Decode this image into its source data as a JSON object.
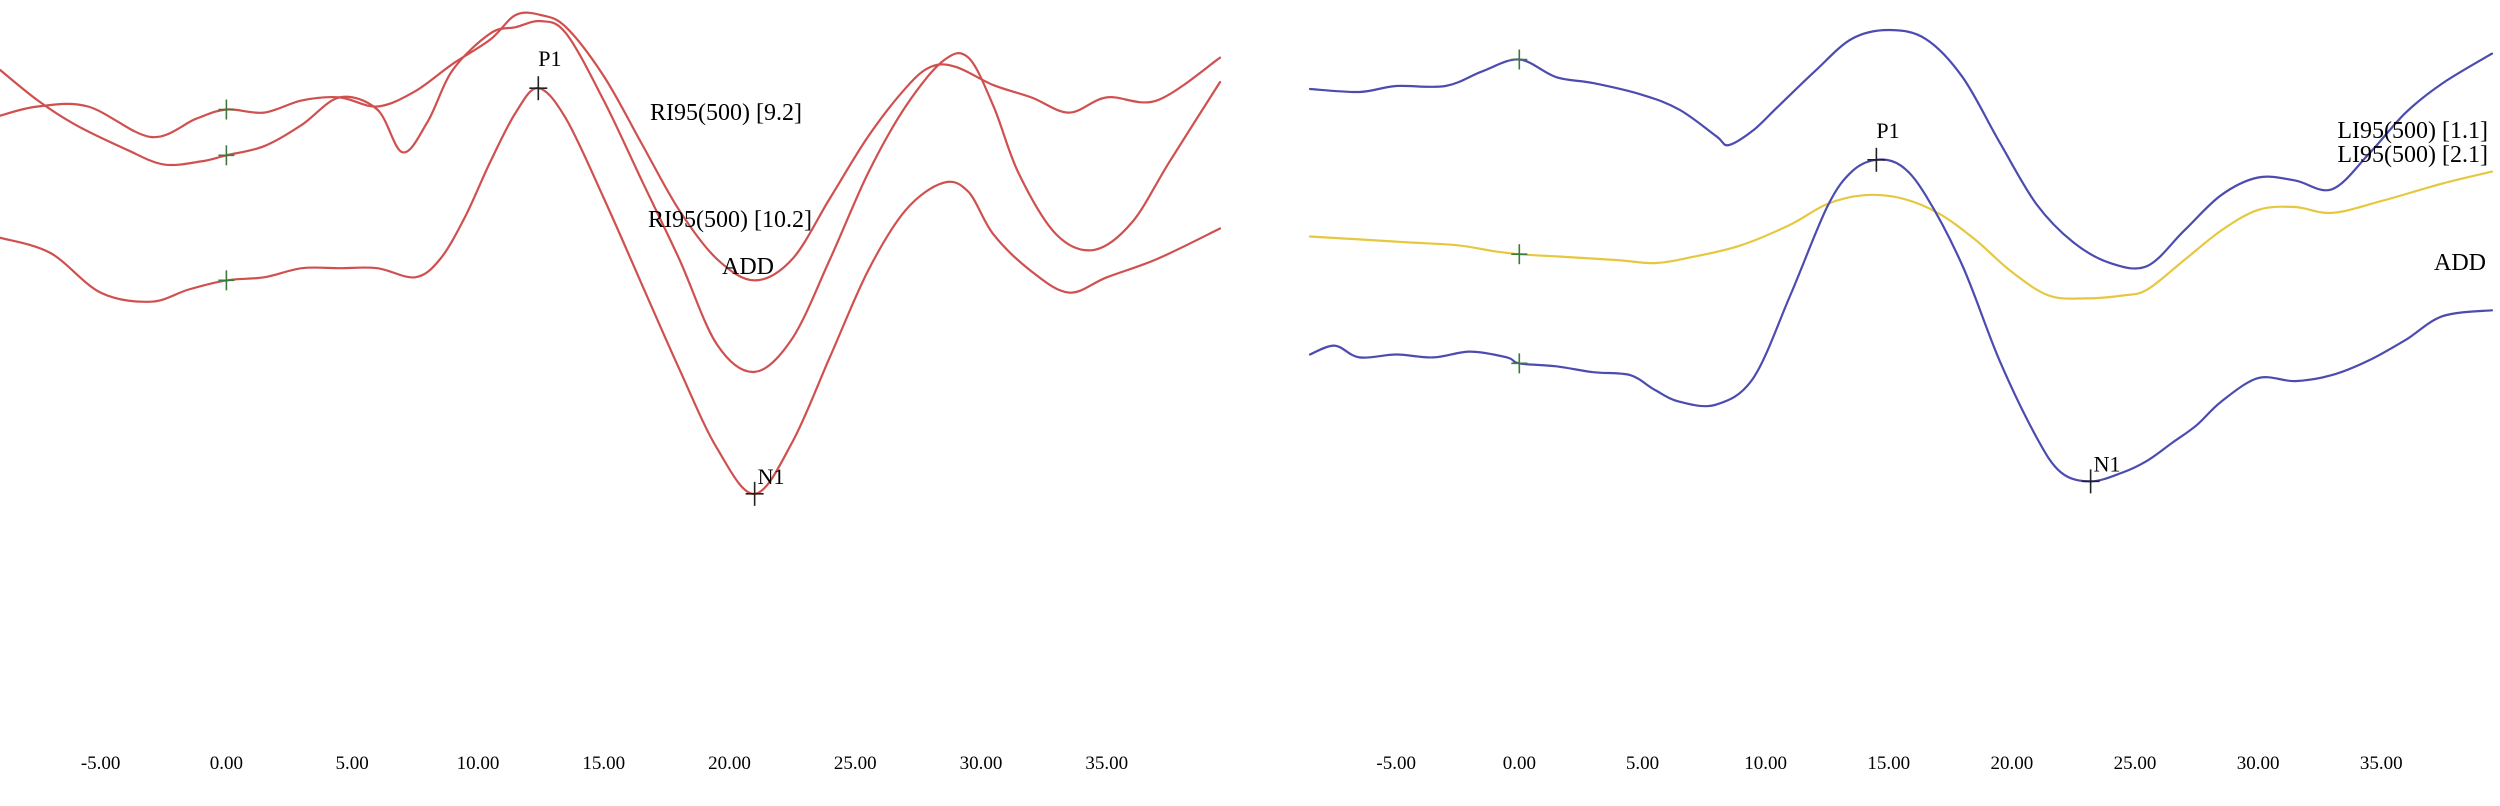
{
  "chart_data": [
    {
      "type": "line",
      "panel": "left",
      "xlim": [
        -9,
        39.5
      ],
      "x_ticks": [
        -5,
        0,
        5,
        10,
        15,
        20,
        25,
        30,
        35
      ],
      "x_tick_labels": [
        "-5.00",
        "0.00",
        "5.00",
        "10.00",
        "15.00",
        "20.00",
        "25.00",
        "30.00",
        "35.00"
      ],
      "series": [
        {
          "name": "RI95(500) [9.2]",
          "color": "#d05050",
          "x": [
            -9,
            -7.5,
            -5.5,
            -3,
            -1.2,
            0,
            1.5,
            3,
            4.5,
            6,
            7.5,
            9,
            10.5,
            11.5,
            12.5,
            13.5,
            15,
            16.5,
            18,
            19.5,
            21,
            22.5,
            24,
            25.5,
            27,
            28,
            29,
            30.5,
            32,
            33.5,
            35,
            37,
            39.5
          ],
          "y": [
            -0.45,
            -0.3,
            -0.3,
            -0.8,
            -0.5,
            -0.35,
            -0.4,
            -0.2,
            -0.15,
            -0.3,
            -0.05,
            0.4,
            0.8,
            1.2,
            1.2,
            1.0,
            0.2,
            -0.9,
            -2.0,
            -2.8,
            -3.15,
            -2.8,
            -1.8,
            -0.8,
            0.0,
            0.35,
            0.35,
            0.05,
            -0.15,
            -0.4,
            -0.15,
            -0.2,
            0.5
          ]
        },
        {
          "name": "RI95(500) [10.2]",
          "color": "#d05050",
          "x": [
            -9,
            -7.5,
            -6,
            -4,
            -2.5,
            -1,
            0,
            1.5,
            3,
            4.5,
            6,
            7,
            8,
            9,
            10.5,
            11.5,
            12.5,
            13.5,
            15,
            16.5,
            18,
            19.5,
            21,
            22.5,
            24,
            25.5,
            27,
            28.5,
            29.5,
            30.5,
            31.5,
            33,
            34.5,
            36,
            37.5,
            39.5
          ],
          "y": [
            0.3,
            -0.2,
            -0.6,
            -1.0,
            -1.25,
            -1.2,
            -1.1,
            -0.95,
            -0.6,
            -0.15,
            -0.35,
            -1.05,
            -0.55,
            0.3,
            0.9,
            1.0,
            1.1,
            0.9,
            -0.2,
            -1.5,
            -2.8,
            -4.2,
            -4.65,
            -4.1,
            -2.8,
            -1.4,
            -0.3,
            0.45,
            0.5,
            -0.3,
            -1.4,
            -2.4,
            -2.65,
            -2.2,
            -1.2,
            0.1
          ]
        },
        {
          "name": "ADD",
          "color": "#d05050",
          "x": [
            -9,
            -7,
            -5,
            -3,
            -1.5,
            0,
            1.5,
            3,
            4.5,
            6,
            7.5,
            8.5,
            9.5,
            10.5,
            11.5,
            12.4,
            13.5,
            15,
            16.5,
            18,
            19.5,
            21,
            22.5,
            24,
            25.5,
            27,
            28.5,
            29.5,
            30.5,
            32,
            33.5,
            35,
            37,
            39.5
          ],
          "y": [
            -2.45,
            -2.7,
            -3.35,
            -3.5,
            -3.3,
            -3.15,
            -3.1,
            -2.95,
            -2.95,
            -2.95,
            -3.1,
            -2.8,
            -2.1,
            -1.2,
            -0.4,
            0.0,
            -0.5,
            -1.8,
            -3.2,
            -4.6,
            -5.9,
            -6.65,
            -5.8,
            -4.4,
            -3.0,
            -2.0,
            -1.55,
            -1.7,
            -2.4,
            -3.0,
            -3.35,
            -3.1,
            -2.8,
            -2.3
          ]
        }
      ],
      "trace_labels": [
        "RI95(500) [9.2]",
        "RI95(500) [10.2]",
        "ADD"
      ],
      "peaks": [
        {
          "label": "P1",
          "x": 12.4,
          "series": 2
        },
        {
          "label": "N1",
          "x": 21.0,
          "series": 2
        }
      ],
      "markers_at_x": 0
    },
    {
      "type": "line",
      "panel": "right",
      "xlim": [
        -8.5,
        39.5
      ],
      "x_ticks": [
        -5,
        0,
        5,
        10,
        15,
        20,
        25,
        30,
        35
      ],
      "x_tick_labels": [
        "-5.00",
        "0.00",
        "5.00",
        "10.00",
        "15.00",
        "20.00",
        "25.00",
        "30.00",
        "35.00"
      ],
      "series": [
        {
          "name": "LI95(500) [1.1]",
          "color": "#4c4cb0",
          "x": [
            -8.5,
            -6.5,
            -5,
            -3,
            -1.5,
            0,
            1.5,
            3,
            5,
            6.5,
            8,
            8.5,
            9.5,
            10.5,
            12,
            13.5,
            15,
            16.5,
            18,
            19.5,
            21,
            22.5,
            24,
            25.5,
            27,
            28.5,
            30,
            31.5,
            33,
            34.5,
            36,
            37.5,
            39.5
          ],
          "y": [
            0.0,
            -0.05,
            0.05,
            0.05,
            0.3,
            0.5,
            0.2,
            0.1,
            -0.1,
            -0.35,
            -0.8,
            -0.95,
            -0.7,
            -0.3,
            0.3,
            0.85,
            1.0,
            0.85,
            0.2,
            -0.9,
            -1.95,
            -2.6,
            -2.95,
            -3.0,
            -2.4,
            -1.8,
            -1.5,
            -1.55,
            -1.7,
            -1.1,
            -0.4,
            0.1,
            0.6
          ]
        },
        {
          "name": "LI95(500) [2.1]",
          "color": "#e6c840",
          "x": [
            -8.5,
            -6.5,
            -4.5,
            -2.5,
            -1,
            0,
            2,
            4,
            5.5,
            7,
            9,
            11,
            12.5,
            14,
            15.5,
            17,
            18.5,
            20,
            21.5,
            23,
            24.5,
            25.5,
            27,
            28.5,
            30,
            31.5,
            33,
            35,
            37.5,
            39.5
          ],
          "y": [
            -2.5,
            -2.55,
            -2.6,
            -2.65,
            -2.75,
            -2.8,
            -2.85,
            -2.9,
            -2.95,
            -2.85,
            -2.65,
            -2.3,
            -1.95,
            -1.8,
            -1.85,
            -2.1,
            -2.55,
            -3.1,
            -3.5,
            -3.55,
            -3.5,
            -3.4,
            -2.9,
            -2.4,
            -2.05,
            -2.0,
            -2.1,
            -1.9,
            -1.6,
            -1.4
          ]
        },
        {
          "name": "ADD",
          "color": "#4c4cb0",
          "x": [
            -8.5,
            -7.5,
            -6.5,
            -5,
            -3.5,
            -2,
            -0.5,
            0,
            1.5,
            3,
            4.5,
            5.5,
            6.5,
            8,
            9.5,
            11,
            12.5,
            13.5,
            14.5,
            15.5,
            16.5,
            18,
            19.5,
            21,
            22,
            23.2,
            24.5,
            25.5,
            26.5,
            27.5,
            28.5,
            30,
            31.5,
            33,
            34.5,
            36,
            37.5,
            39.5
          ],
          "y": [
            -4.5,
            -4.35,
            -4.55,
            -4.5,
            -4.55,
            -4.45,
            -4.55,
            -4.65,
            -4.7,
            -4.8,
            -4.85,
            -5.1,
            -5.3,
            -5.35,
            -4.9,
            -3.5,
            -2.0,
            -1.4,
            -1.2,
            -1.3,
            -1.8,
            -3.0,
            -4.6,
            -5.9,
            -6.5,
            -6.65,
            -6.5,
            -6.3,
            -6.0,
            -5.7,
            -5.3,
            -4.9,
            -4.95,
            -4.85,
            -4.6,
            -4.25,
            -3.85,
            -3.75
          ]
        }
      ],
      "trace_labels": [
        "LI95(500) [1.1]",
        "LI95(500) [2.1]",
        "ADD"
      ],
      "peaks": [
        {
          "label": "P1",
          "x": 14.5,
          "series": 2
        },
        {
          "label": "N1",
          "x": 23.2,
          "series": 2
        }
      ],
      "markers_at_x": 0
    }
  ]
}
